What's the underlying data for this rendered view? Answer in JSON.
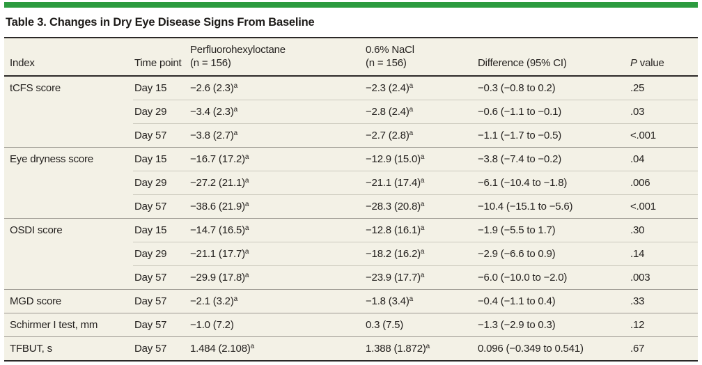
{
  "colors": {
    "accent_green": "#2c9b3f",
    "table_background": "#f3f1e6",
    "rule_dark": "#2b2827",
    "rule_group": "#9b9890",
    "rule_sub": "#cbc9bd"
  },
  "table": {
    "title": "Table 3. Changes in Dry Eye Disease Signs From Baseline",
    "columns": {
      "index": "Index",
      "time_point": "Time point",
      "pfho_label": "Perfluorohexyloctane",
      "pfho_n": "(n = 156)",
      "nacl_label": "0.6% NaCl",
      "nacl_n": "(n = 156)",
      "difference": "Difference (95% CI)",
      "p_italic": "P",
      "p_rest": " value"
    },
    "rows": [
      {
        "index": "tCFS score",
        "time_point": "Day 15",
        "pfho": "−2.6 (2.3)",
        "pfho_sup": "a",
        "nacl": "−2.3 (2.4)",
        "nacl_sup": "a",
        "difference": "−0.3 (−0.8 to 0.2)",
        "p_value": ".25",
        "group_start": true,
        "first": true
      },
      {
        "index": "",
        "time_point": "Day 29",
        "pfho": "−3.4 (2.3)",
        "pfho_sup": "a",
        "nacl": "−2.8 (2.4)",
        "nacl_sup": "a",
        "difference": "−0.6 (−1.1 to −0.1)",
        "p_value": ".03",
        "group_start": false
      },
      {
        "index": "",
        "time_point": "Day 57",
        "pfho": "−3.8 (2.7)",
        "pfho_sup": "a",
        "nacl": "−2.7 (2.8)",
        "nacl_sup": "a",
        "difference": "−1.1 (−1.7 to −0.5)",
        "p_value": "<.001",
        "group_start": false
      },
      {
        "index": "Eye dryness score",
        "time_point": "Day 15",
        "pfho": "−16.7 (17.2)",
        "pfho_sup": "a",
        "nacl": "−12.9 (15.0)",
        "nacl_sup": "a",
        "difference": "−3.8 (−7.4 to −0.2)",
        "p_value": ".04",
        "group_start": true
      },
      {
        "index": "",
        "time_point": "Day 29",
        "pfho": "−27.2 (21.1)",
        "pfho_sup": "a",
        "nacl": "−21.1 (17.4)",
        "nacl_sup": "a",
        "difference": "−6.1 (−10.4 to −1.8)",
        "p_value": ".006",
        "group_start": false
      },
      {
        "index": "",
        "time_point": "Day 57",
        "pfho": "−38.6 (21.9)",
        "pfho_sup": "a",
        "nacl": "−28.3 (20.8)",
        "nacl_sup": "a",
        "difference": "−10.4 (−15.1 to −5.6)",
        "p_value": "<.001",
        "group_start": false
      },
      {
        "index": "OSDI score",
        "time_point": "Day 15",
        "pfho": "−14.7 (16.5)",
        "pfho_sup": "a",
        "nacl": "−12.8 (16.1)",
        "nacl_sup": "a",
        "difference": "−1.9 (−5.5 to 1.7)",
        "p_value": ".30",
        "group_start": true
      },
      {
        "index": "",
        "time_point": "Day 29",
        "pfho": "−21.1 (17.7)",
        "pfho_sup": "a",
        "nacl": "−18.2 (16.2)",
        "nacl_sup": "a",
        "difference": "−2.9 (−6.6 to 0.9)",
        "p_value": ".14",
        "group_start": false
      },
      {
        "index": "",
        "time_point": "Day 57",
        "pfho": "−29.9 (17.8)",
        "pfho_sup": "a",
        "nacl": "−23.9 (17.7)",
        "nacl_sup": "a",
        "difference": "−6.0 (−10.0 to −2.0)",
        "p_value": ".003",
        "group_start": false
      },
      {
        "index": "MGD score",
        "time_point": "Day 57",
        "pfho": "−2.1 (3.2)",
        "pfho_sup": "a",
        "nacl": "−1.8 (3.4)",
        "nacl_sup": "a",
        "difference": "−0.4 (−1.1 to 0.4)",
        "p_value": ".33",
        "group_start": true
      },
      {
        "index": "Schirmer I test, mm",
        "time_point": "Day 57",
        "pfho": "−1.0 (7.2)",
        "pfho_sup": "",
        "nacl": "0.3 (7.5)",
        "nacl_sup": "",
        "difference": "−1.3 (−2.9 to 0.3)",
        "p_value": ".12",
        "group_start": true
      },
      {
        "index": "TFBUT, s",
        "time_point": "Day 57",
        "pfho": "1.484 (2.108)",
        "pfho_sup": "a",
        "nacl": "1.388 (1.872)",
        "nacl_sup": "a",
        "difference": "0.096 (−0.349 to 0.541)",
        "p_value": ".67",
        "group_start": true
      }
    ]
  }
}
